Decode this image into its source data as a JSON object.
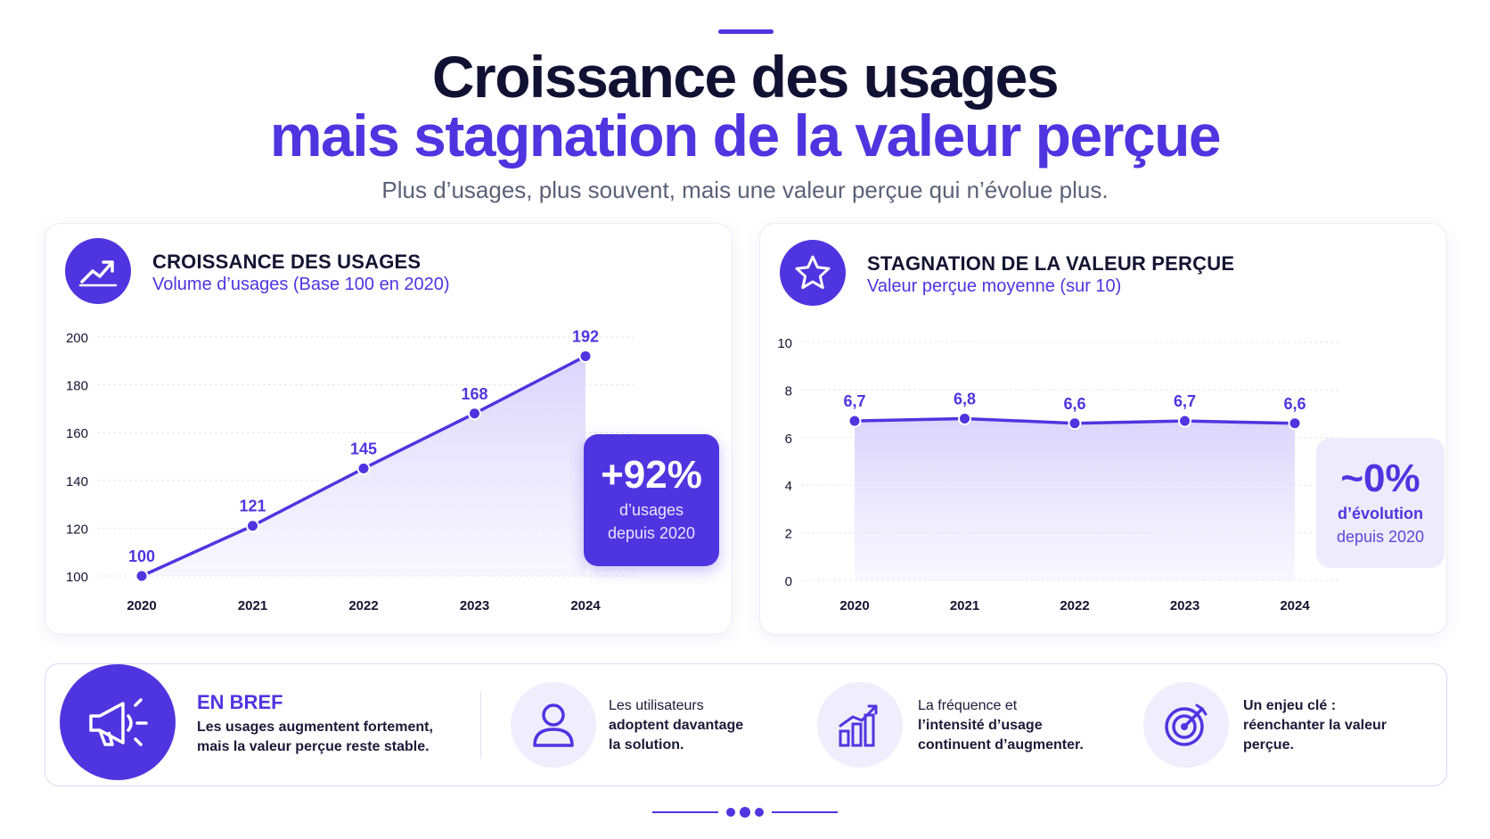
{
  "header": {
    "title_line1": "Croissance des usages",
    "title_line2": "mais stagnation de la valeur perçue",
    "subtitle": "Plus d’usages, plus souvent, mais une valeur perçue qui n’évolue plus."
  },
  "colors": {
    "accent": "#4f35e0",
    "dark_text": "#141432",
    "muted_text": "#5c6178",
    "area_fill": "#ece8fd"
  },
  "usage_card": {
    "icon": "trending-up-icon",
    "title": "CROISSANCE DES USAGES",
    "subtitle": "Volume d’usages (Base 100 en 2020)",
    "stat": {
      "value": "+92%",
      "label_line1": "d’usages",
      "label_line2": "depuis 2020"
    }
  },
  "value_card": {
    "icon": "star-icon",
    "title": "STAGNATION DE LA VALEUR PERÇUE",
    "subtitle": "Valeur perçue moyenne (sur 10)",
    "stat": {
      "value": "~0%",
      "label_line1": "d’évolution",
      "label_line2": "depuis 2020"
    }
  },
  "chart_data": [
    {
      "type": "area",
      "title": "CROISSANCE DES USAGES",
      "subtitle": "Volume d’usages (Base 100 en 2020)",
      "categories": [
        "2020",
        "2021",
        "2022",
        "2023",
        "2024"
      ],
      "values": [
        100,
        121,
        145,
        168,
        192
      ],
      "data_labels": [
        "100",
        "121",
        "145",
        "168",
        "192"
      ],
      "ylim": [
        100,
        200
      ],
      "yticks": [
        "100",
        "120",
        "140",
        "160",
        "180",
        "200"
      ],
      "grid": true
    },
    {
      "type": "line",
      "title": "STAGNATION DE LA VALEUR PERÇUE",
      "subtitle": "Valeur perçue moyenne (sur 10)",
      "categories": [
        "2020",
        "2021",
        "2022",
        "2023",
        "2024"
      ],
      "values": [
        6.7,
        6.8,
        6.6,
        6.7,
        6.6
      ],
      "data_labels": [
        "6,7",
        "6,8",
        "6,6",
        "6,7",
        "6,6"
      ],
      "ylim": [
        0,
        10
      ],
      "yticks": [
        "0",
        "2",
        "4",
        "6",
        "8",
        "10"
      ],
      "grid": true
    }
  ],
  "summary": {
    "icon": "megaphone-icon",
    "title": "EN BREF",
    "text": "Les usages augmentent fortement, mais la valeur perçue reste stable.",
    "points": [
      {
        "icon": "user-icon",
        "line1": "Les utilisateurs",
        "line2": "adoptent davantage",
        "line3": "la solution."
      },
      {
        "icon": "bar-chart-growth-icon",
        "line1": "La fréquence et",
        "line2": "l’intensité d’usage",
        "line3": "continuent d’augmenter."
      },
      {
        "icon": "target-icon",
        "line1": "Un enjeu clé :",
        "line2": "réenchanter la valeur",
        "line3": "perçue."
      }
    ]
  }
}
